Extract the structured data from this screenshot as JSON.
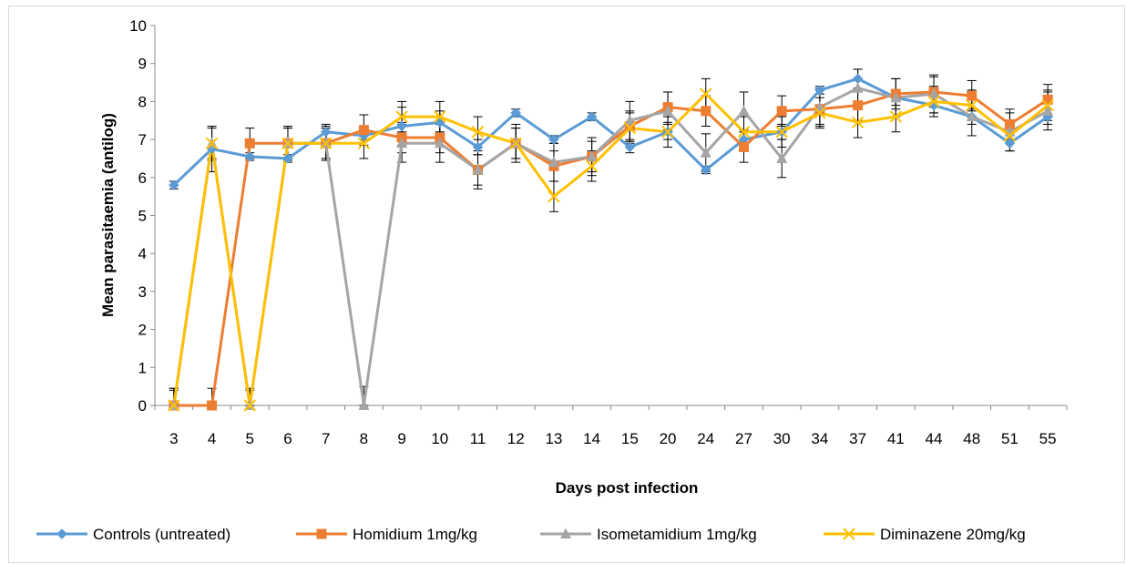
{
  "chart_data": {
    "type": "line",
    "title": "",
    "xlabel": "Days post infection",
    "ylabel": "Mean parasitaemia (antilog)",
    "ylim": [
      0,
      10
    ],
    "yticks": [
      "0",
      "1",
      "2",
      "3",
      "4",
      "5",
      "6",
      "7",
      "8",
      "9",
      "10"
    ],
    "categories": [
      "3",
      "4",
      "5",
      "6",
      "7",
      "8",
      "9",
      "10",
      "11",
      "12",
      "13",
      "14",
      "15",
      "20",
      "24",
      "27",
      "30",
      "34",
      "37",
      "41",
      "44",
      "48",
      "51",
      "55"
    ],
    "grid": false,
    "legend": "bottom",
    "error_bars": true,
    "series": [
      {
        "name": "Controls (untreated)",
        "color": "#5b9bd5",
        "marker": "diamond",
        "values": [
          5.8,
          6.75,
          6.55,
          6.5,
          7.2,
          7.1,
          7.35,
          7.45,
          6.8,
          7.7,
          7.0,
          7.6,
          6.8,
          7.2,
          6.2,
          7.0,
          7.2,
          8.3,
          8.6,
          8.1,
          7.9,
          7.6,
          6.9,
          7.6
        ],
        "errors": [
          0.1,
          0.6,
          0.1,
          0.1,
          0.2,
          0.1,
          0.5,
          0.3,
          0.2,
          0.1,
          0.1,
          0.1,
          0.15,
          0.2,
          0.1,
          0.2,
          0.2,
          0.1,
          0.25,
          0.2,
          0.2,
          0.2,
          0.2,
          0.2
        ]
      },
      {
        "name": "Homidium 1mg/kg",
        "color": "#ed7d31",
        "marker": "square",
        "values": [
          0,
          0,
          6.9,
          6.9,
          6.9,
          7.25,
          7.05,
          7.05,
          6.2,
          6.9,
          6.3,
          6.55,
          7.35,
          7.85,
          7.75,
          6.8,
          7.75,
          7.8,
          7.9,
          8.2,
          8.25,
          8.15,
          7.4,
          8.05
        ],
        "errors": [
          0.45,
          0.45,
          0.4,
          0.4,
          0.4,
          0.4,
          0.4,
          0.4,
          0.4,
          0.4,
          0.4,
          0.4,
          0.4,
          0.4,
          0.4,
          0.4,
          0.4,
          0.4,
          0.4,
          0.4,
          0.4,
          0.4,
          0.4,
          0.4
        ]
      },
      {
        "name": "Isometamidium 1mg/kg",
        "color": "#a5a5a5",
        "marker": "triangle",
        "values": [
          0,
          6.9,
          0,
          6.9,
          6.9,
          0,
          6.9,
          6.9,
          6.2,
          6.9,
          6.4,
          6.55,
          7.5,
          7.75,
          6.65,
          7.75,
          6.5,
          7.85,
          8.35,
          8.1,
          8.2,
          7.6,
          7.2,
          7.75
        ],
        "errors": [
          0.45,
          0.45,
          0.45,
          0.45,
          0.45,
          0.5,
          0.5,
          0.5,
          0.5,
          0.5,
          0.5,
          0.5,
          0.5,
          0.5,
          0.5,
          0.5,
          0.5,
          0.5,
          0.5,
          0.5,
          0.5,
          0.5,
          0.5,
          0.5
        ]
      },
      {
        "name": "Diminazene 20mg/kg",
        "color": "#ffc000",
        "marker": "x",
        "values": [
          0,
          6.9,
          0,
          6.9,
          6.9,
          6.9,
          7.6,
          7.6,
          7.2,
          6.9,
          5.5,
          6.3,
          7.3,
          7.2,
          8.2,
          7.2,
          7.2,
          7.7,
          7.45,
          7.6,
          8.0,
          7.9,
          7.1,
          7.9
        ],
        "errors": [
          0.4,
          0.4,
          0.4,
          0.4,
          0.4,
          0.4,
          0.4,
          0.4,
          0.4,
          0.4,
          0.4,
          0.4,
          0.4,
          0.4,
          0.4,
          0.4,
          0.4,
          0.4,
          0.4,
          0.4,
          0.4,
          0.4,
          0.4,
          0.4
        ]
      }
    ]
  }
}
